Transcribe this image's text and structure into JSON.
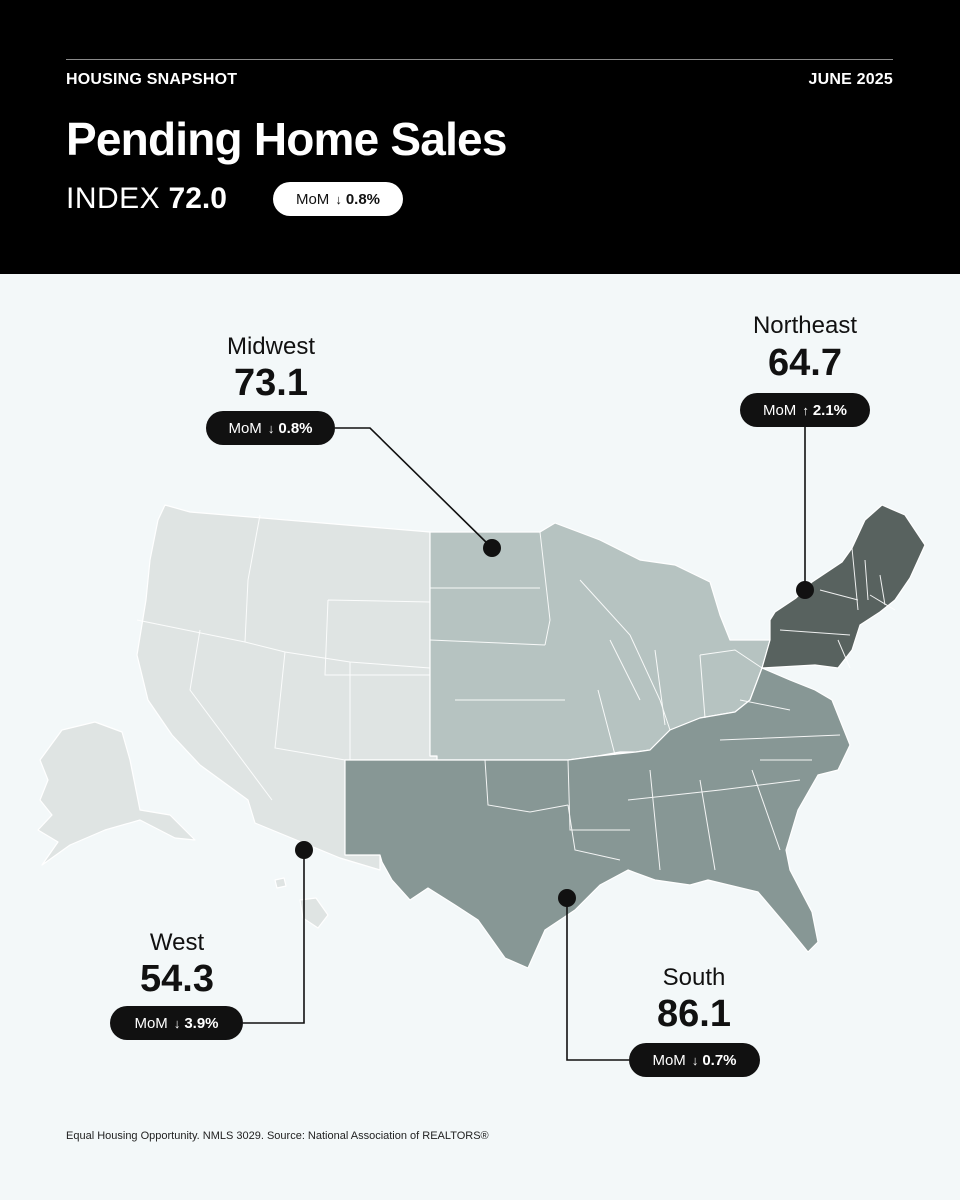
{
  "header": {
    "eyebrow_left": "HOUSING SNAPSHOT",
    "eyebrow_right": "JUNE 2025",
    "title": "Pending Home Sales",
    "index_label": "INDEX",
    "index_value": "72.0",
    "mom_label": "MoM",
    "mom_value": "0.8%",
    "mom_direction": "down"
  },
  "regions": {
    "midwest": {
      "name": "Midwest",
      "value": "73.1",
      "mom_label": "MoM",
      "mom_value": "0.8%",
      "mom_direction": "down"
    },
    "northeast": {
      "name": "Northeast",
      "value": "64.7",
      "mom_label": "MoM",
      "mom_value": "2.1%",
      "mom_direction": "up"
    },
    "west": {
      "name": "West",
      "value": "54.3",
      "mom_label": "MoM",
      "mom_value": "3.9%",
      "mom_direction": "down"
    },
    "south": {
      "name": "South",
      "value": "86.1",
      "mom_label": "MoM",
      "mom_value": "0.7%",
      "mom_direction": "down"
    }
  },
  "arrows": {
    "down": "↓",
    "up": "↑"
  },
  "colors": {
    "header_bg": "#000000",
    "page_bg": "#f3f8f9",
    "west_fill": "#dfe4e3",
    "midwest_fill": "#b6c3c1",
    "south_fill": "#879795",
    "northeast_fill": "#58625f"
  },
  "footer": "Equal Housing Opportunity. NMLS 3029. Source: National Association of REALTORS®"
}
